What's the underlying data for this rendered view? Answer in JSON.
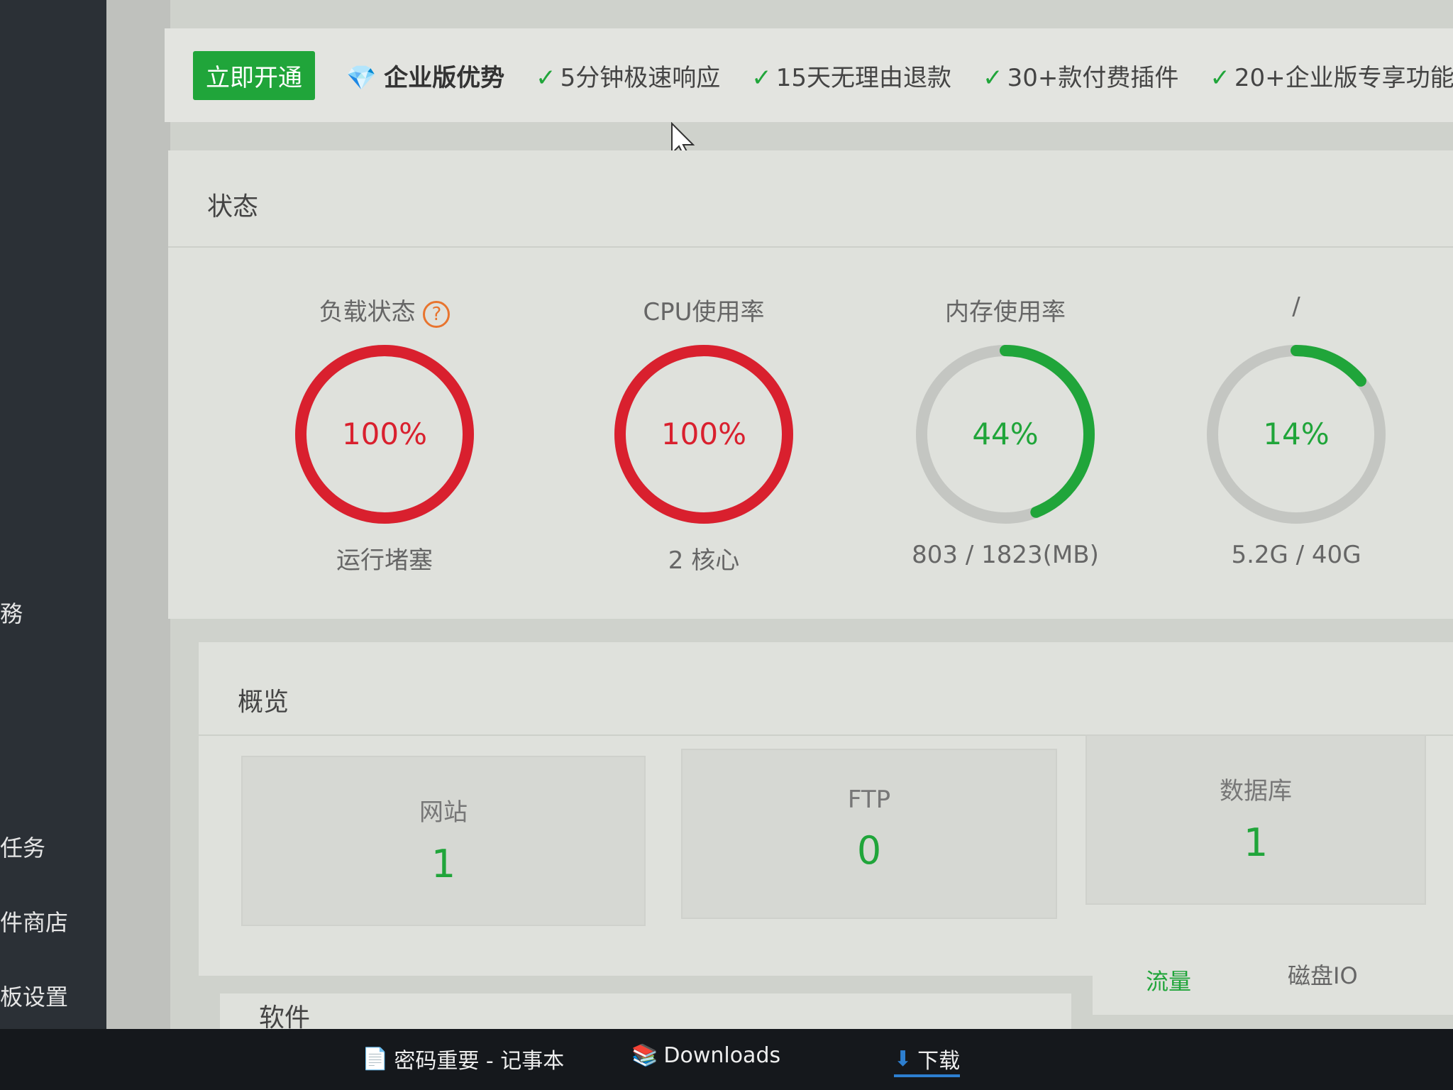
{
  "sidebar": {
    "items": [
      "務",
      "任务",
      "件商店",
      "板设置"
    ]
  },
  "promo": {
    "button": "立即开通",
    "title": "企业版优势",
    "features": [
      "5分钟极速响应",
      "15天无理由退款",
      "30+款付费插件",
      "20+企业版专享功能"
    ]
  },
  "status": {
    "title": "状态",
    "gauges": [
      {
        "label": "负载状态",
        "percent": 100,
        "value_text": "100%",
        "sub": "运行堵塞",
        "color": "#d9202e",
        "help": "?"
      },
      {
        "label": "CPU使用率",
        "percent": 100,
        "value_text": "100%",
        "sub": "2 核心",
        "color": "#d9202e"
      },
      {
        "label": "内存使用率",
        "percent": 44,
        "value_text": "44%",
        "sub": "803 / 1823(MB)",
        "color": "#20a53a"
      },
      {
        "label": "/",
        "percent": 14,
        "value_text": "14%",
        "sub": "5.2G / 40G",
        "color": "#20a53a"
      }
    ]
  },
  "overview": {
    "title": "概览",
    "items": [
      {
        "label": "网站",
        "value": "1"
      },
      {
        "label": "FTP",
        "value": "0"
      },
      {
        "label": "数据库",
        "value": "1"
      }
    ]
  },
  "software": {
    "title": "软件"
  },
  "traffic": {
    "tabs": [
      "流量",
      "磁盘IO"
    ]
  },
  "taskbar": {
    "items": [
      "密码重要 - 记事本",
      "Downloads",
      "下载"
    ]
  }
}
